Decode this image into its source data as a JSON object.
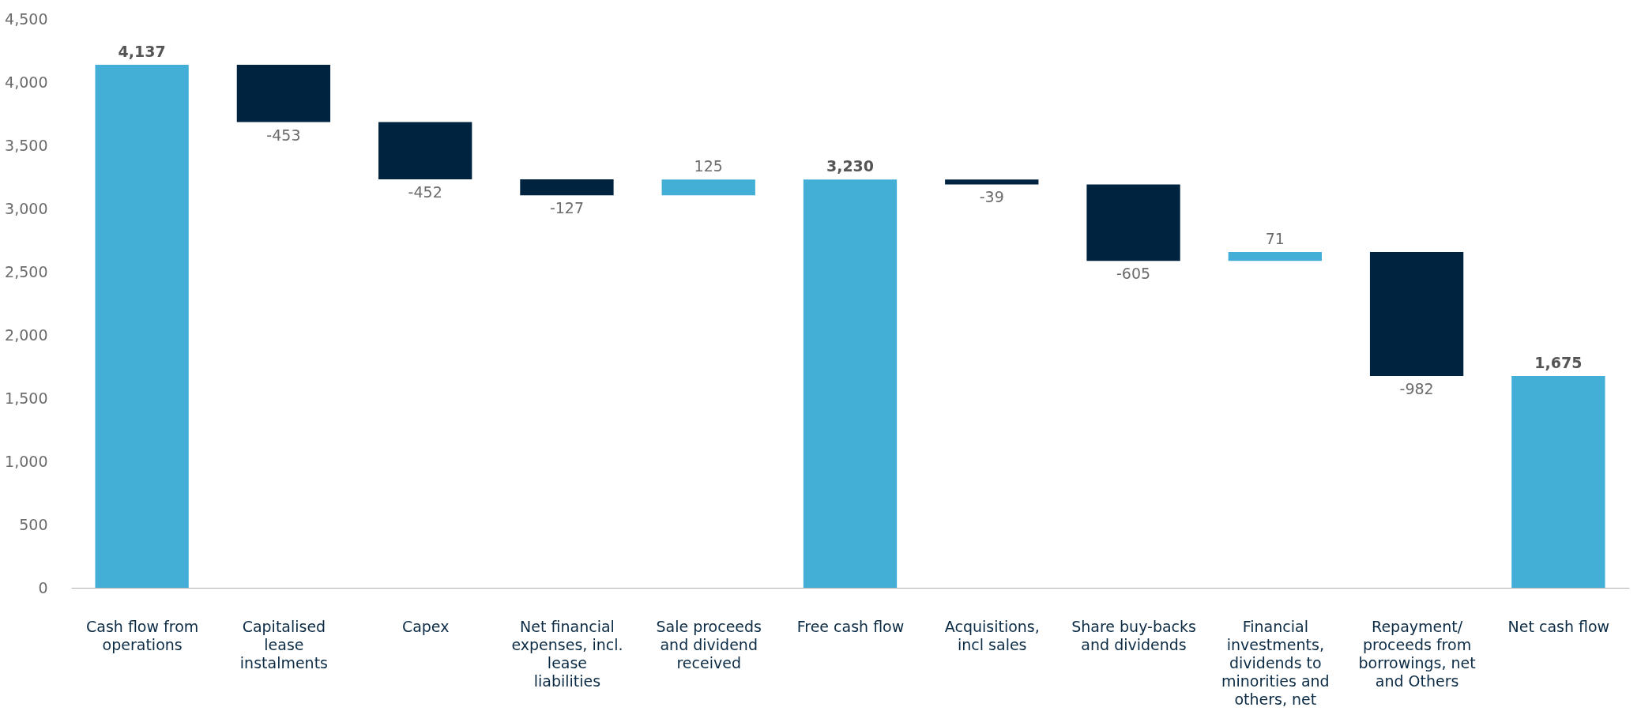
{
  "chart_data": {
    "type": "bar",
    "categories": [
      "Cash flow from operations",
      "Capitalised lease instalments",
      "Capex",
      "Net financial expenses, incl. lease liabilities",
      "Sale proceeds and dividend received",
      "Free cash flow",
      "Acquisitions, incl sales",
      "Share buy-backs and dividends",
      "Financial investments, dividends to minorities and others, net",
      "Repayment/ proceeds from borrowings, net and Others",
      "Net cash flow"
    ],
    "values": [
      4137,
      -453,
      -452,
      -127,
      125,
      3230,
      -39,
      -605,
      71,
      -982,
      1675
    ],
    "base": [
      0,
      4137,
      3684,
      3232,
      3105,
      0,
      3230,
      3191,
      2586,
      2657,
      0
    ],
    "colors": [
      "#43afd6",
      "#00243f",
      "#00243f",
      "#00243f",
      "#43afd6",
      "#43afd6",
      "#00243f",
      "#00243f",
      "#43afd6",
      "#00243f",
      "#43afd6"
    ],
    "value_labels": [
      "4,137",
      "-453",
      "-452",
      "-127",
      "125",
      "3,230",
      "-39",
      "-605",
      "71",
      "-982",
      "1,675"
    ],
    "ylim": [
      0,
      4500
    ],
    "yticks": [
      0,
      {
        "value": 500,
        "label": "500"
      },
      {
        "value": 1000,
        "label": "1,000"
      },
      {
        "value": 1500,
        "label": "1,500"
      },
      {
        "value": 2000,
        "label": "2,000"
      },
      {
        "value": 2500,
        "label": "2,500"
      },
      {
        "value": 3000,
        "label": "3,000"
      },
      {
        "value": 3500,
        "label": "3,500"
      },
      {
        "value": 4000,
        "label": "4,000"
      },
      {
        "value": 4500,
        "label": "4,500"
      }
    ],
    "grid": false
  }
}
